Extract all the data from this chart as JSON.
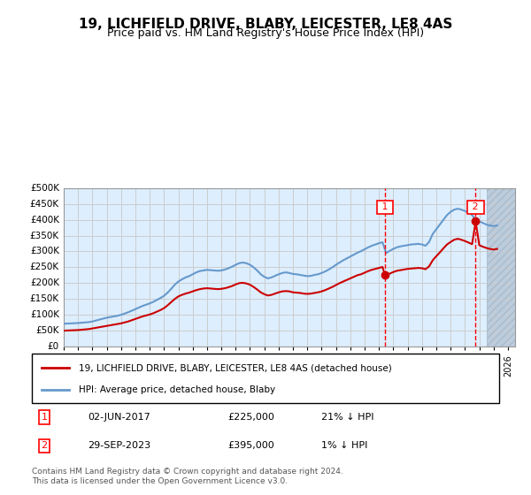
{
  "title": "19, LICHFIELD DRIVE, BLABY, LEICESTER, LE8 4AS",
  "subtitle": "Price paid vs. HM Land Registry's House Price Index (HPI)",
  "xlabel": "",
  "ylabel": "",
  "ylim": [
    0,
    500000
  ],
  "yticks": [
    0,
    50000,
    100000,
    150000,
    200000,
    250000,
    300000,
    350000,
    400000,
    450000,
    500000
  ],
  "ytick_labels": [
    "£0",
    "£50K",
    "£100K",
    "£150K",
    "£200K",
    "£250K",
    "£300K",
    "£350K",
    "£400K",
    "£450K",
    "£500K"
  ],
  "x_start_year": 1995,
  "x_end_year": 2026,
  "hpi_color": "#6699cc",
  "price_color": "#cc0000",
  "bg_color": "#ddeeff",
  "hatch_color": "#bbccdd",
  "grid_color": "#cccccc",
  "sale1_year": 2017.42,
  "sale1_price": 225000,
  "sale1_label": "02-JUN-2017",
  "sale1_amount": "£225,000",
  "sale1_hpi": "21% ↓ HPI",
  "sale2_year": 2023.75,
  "sale2_price": 395000,
  "sale2_label": "29-SEP-2023",
  "sale2_amount": "£395,000",
  "sale2_hpi": "1% ↓ HPI",
  "legend_line1": "19, LICHFIELD DRIVE, BLABY, LEICESTER, LE8 4AS (detached house)",
  "legend_line2": "HPI: Average price, detached house, Blaby",
  "footer": "Contains HM Land Registry data © Crown copyright and database right 2024.\nThis data is licensed under the Open Government Licence v3.0.",
  "hpi_data": {
    "years": [
      1995.0,
      1995.25,
      1995.5,
      1995.75,
      1996.0,
      1996.25,
      1996.5,
      1996.75,
      1997.0,
      1997.25,
      1997.5,
      1997.75,
      1998.0,
      1998.25,
      1998.5,
      1998.75,
      1999.0,
      1999.25,
      1999.5,
      1999.75,
      2000.0,
      2000.25,
      2000.5,
      2000.75,
      2001.0,
      2001.25,
      2001.5,
      2001.75,
      2002.0,
      2002.25,
      2002.5,
      2002.75,
      2003.0,
      2003.25,
      2003.5,
      2003.75,
      2004.0,
      2004.25,
      2004.5,
      2004.75,
      2005.0,
      2005.25,
      2005.5,
      2005.75,
      2006.0,
      2006.25,
      2006.5,
      2006.75,
      2007.0,
      2007.25,
      2007.5,
      2007.75,
      2008.0,
      2008.25,
      2008.5,
      2008.75,
      2009.0,
      2009.25,
      2009.5,
      2009.75,
      2010.0,
      2010.25,
      2010.5,
      2010.75,
      2011.0,
      2011.25,
      2011.5,
      2011.75,
      2012.0,
      2012.25,
      2012.5,
      2012.75,
      2013.0,
      2013.25,
      2013.5,
      2013.75,
      2014.0,
      2014.25,
      2014.5,
      2014.75,
      2015.0,
      2015.25,
      2015.5,
      2015.75,
      2016.0,
      2016.25,
      2016.5,
      2016.75,
      2017.0,
      2017.25,
      2017.5,
      2017.75,
      2018.0,
      2018.25,
      2018.5,
      2018.75,
      2019.0,
      2019.25,
      2019.5,
      2019.75,
      2020.0,
      2020.25,
      2020.5,
      2020.75,
      2021.0,
      2021.25,
      2021.5,
      2021.75,
      2022.0,
      2022.25,
      2022.5,
      2022.75,
      2023.0,
      2023.25,
      2023.5,
      2023.75,
      2024.0,
      2024.25,
      2024.5,
      2024.75,
      2025.0,
      2025.25
    ],
    "values": [
      72000,
      72500,
      73000,
      73500,
      74000,
      75000,
      76000,
      77000,
      79000,
      82000,
      85000,
      88000,
      91000,
      93000,
      95000,
      97000,
      100000,
      104000,
      108000,
      113000,
      118000,
      123000,
      128000,
      132000,
      136000,
      141000,
      147000,
      153000,
      160000,
      170000,
      182000,
      195000,
      205000,
      212000,
      218000,
      222000,
      228000,
      234000,
      238000,
      240000,
      242000,
      241000,
      240000,
      239000,
      240000,
      243000,
      247000,
      252000,
      258000,
      263000,
      265000,
      263000,
      258000,
      250000,
      240000,
      228000,
      220000,
      215000,
      218000,
      223000,
      228000,
      232000,
      234000,
      232000,
      229000,
      228000,
      226000,
      224000,
      222000,
      223000,
      226000,
      228000,
      232000,
      237000,
      243000,
      250000,
      258000,
      265000,
      272000,
      278000,
      284000,
      290000,
      296000,
      301000,
      307000,
      313000,
      318000,
      322000,
      326000,
      329000,
      295000,
      302000,
      308000,
      313000,
      316000,
      318000,
      320000,
      322000,
      323000,
      324000,
      322000,
      318000,
      330000,
      355000,
      370000,
      385000,
      400000,
      415000,
      425000,
      432000,
      435000,
      432000,
      428000,
      422000,
      415000,
      400000,
      395000,
      390000,
      385000,
      382000,
      380000,
      382000
    ]
  },
  "price_data": {
    "years": [
      1995.0,
      1995.25,
      1995.5,
      1995.75,
      1996.0,
      1996.25,
      1996.5,
      1996.75,
      1997.0,
      1997.25,
      1997.5,
      1997.75,
      1998.0,
      1998.25,
      1998.5,
      1998.75,
      1999.0,
      1999.25,
      1999.5,
      1999.75,
      2000.0,
      2000.25,
      2000.5,
      2000.75,
      2001.0,
      2001.25,
      2001.5,
      2001.75,
      2002.0,
      2002.25,
      2002.5,
      2002.75,
      2003.0,
      2003.25,
      2003.5,
      2003.75,
      2004.0,
      2004.25,
      2004.5,
      2004.75,
      2005.0,
      2005.25,
      2005.5,
      2005.75,
      2006.0,
      2006.25,
      2006.5,
      2006.75,
      2007.0,
      2007.25,
      2007.5,
      2007.75,
      2008.0,
      2008.25,
      2008.5,
      2008.75,
      2009.0,
      2009.25,
      2009.5,
      2009.75,
      2010.0,
      2010.25,
      2010.5,
      2010.75,
      2011.0,
      2011.25,
      2011.5,
      2011.75,
      2012.0,
      2012.25,
      2012.5,
      2012.75,
      2013.0,
      2013.25,
      2013.5,
      2013.75,
      2014.0,
      2014.25,
      2014.5,
      2014.75,
      2015.0,
      2015.25,
      2015.5,
      2015.75,
      2016.0,
      2016.25,
      2016.5,
      2016.75,
      2017.0,
      2017.25,
      2017.42,
      2017.75,
      2018.0,
      2018.25,
      2018.5,
      2018.75,
      2019.0,
      2019.25,
      2019.5,
      2019.75,
      2020.0,
      2020.25,
      2020.5,
      2020.75,
      2021.0,
      2021.25,
      2021.5,
      2021.75,
      2022.0,
      2022.25,
      2022.5,
      2022.75,
      2023.0,
      2023.25,
      2023.5,
      2023.75,
      2024.0,
      2024.25,
      2024.5,
      2024.75,
      2025.0,
      2025.25
    ],
    "values": [
      50000,
      50500,
      51000,
      51500,
      52000,
      53000,
      54000,
      55000,
      57000,
      59000,
      61000,
      63000,
      65000,
      67000,
      69000,
      71000,
      73000,
      76000,
      79000,
      83000,
      87000,
      91000,
      95000,
      98000,
      101000,
      105000,
      110000,
      115000,
      121000,
      130000,
      140000,
      150000,
      158000,
      163000,
      167000,
      170000,
      174000,
      178000,
      181000,
      183000,
      184000,
      183000,
      182000,
      181000,
      182000,
      184000,
      187000,
      191000,
      196000,
      200000,
      201000,
      199000,
      195000,
      188000,
      180000,
      171000,
      165000,
      161000,
      163000,
      167000,
      171000,
      174000,
      175000,
      174000,
      171000,
      170000,
      169000,
      167000,
      166000,
      167000,
      169000,
      171000,
      174000,
      178000,
      183000,
      188000,
      194000,
      200000,
      205000,
      210000,
      215000,
      220000,
      225000,
      228000,
      233000,
      238000,
      242000,
      245000,
      248000,
      251000,
      225000,
      230000,
      235000,
      239000,
      241000,
      243000,
      245000,
      246000,
      247000,
      248000,
      247000,
      244000,
      253000,
      272000,
      285000,
      297000,
      310000,
      322000,
      330000,
      337000,
      340000,
      337000,
      333000,
      328000,
      323000,
      395000,
      320000,
      315000,
      311000,
      308000,
      306000,
      308000
    ]
  }
}
